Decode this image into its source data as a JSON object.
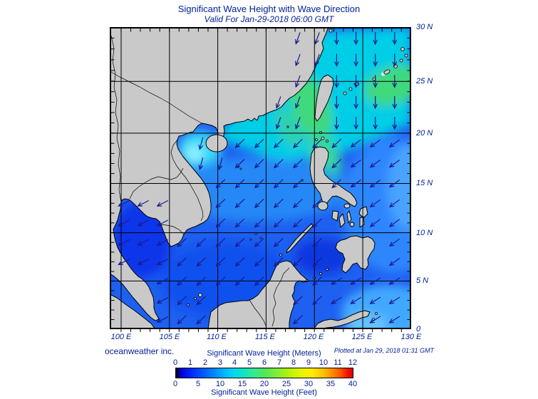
{
  "header": {
    "title": "Significant Wave Height with Wave Direction",
    "subtitle": "Valid For Jan-29-2018 06:00 GMT"
  },
  "footer": {
    "credit": "oceanweather inc.",
    "plotted": "Plotted at Jan 29, 2018 01:31 GMT"
  },
  "map": {
    "lon_labels": [
      "100 E",
      "105 E",
      "110 E",
      "115 E",
      "120 E",
      "125 E",
      "130 E"
    ],
    "lat_labels": [
      "30 N",
      "25 N",
      "20 N",
      "15 N",
      "10 N",
      "5 N",
      "0"
    ],
    "projection": "mercator",
    "lon_range_deg": [
      98.8,
      130
    ],
    "lat_range_deg": [
      0,
      30
    ]
  },
  "colorbar": {
    "title_meters": "Significant Wave Height (Meters)",
    "title_feet": "Significant Wave Height (Feet)",
    "meters_ticks": [
      "0",
      "1",
      "2",
      "3",
      "4",
      "5",
      "6",
      "7",
      "8",
      "9",
      "10",
      "11",
      "12"
    ],
    "feet_ticks": [
      "0",
      "5",
      "10",
      "15",
      "20",
      "25",
      "30",
      "35",
      "40"
    ],
    "range_meters": [
      0,
      12
    ],
    "range_feet": [
      0,
      40
    ]
  },
  "colors": {
    "text": "#001e96",
    "land": "#c9c9c9",
    "coastline": "#000000",
    "sea_base": "#1e60f0",
    "high_wave_cyan": "#00cde6",
    "high_wave_green": "#3fd97c",
    "low_wave_blue": "#0c35ea",
    "arrow": "#1a1a8c"
  }
}
